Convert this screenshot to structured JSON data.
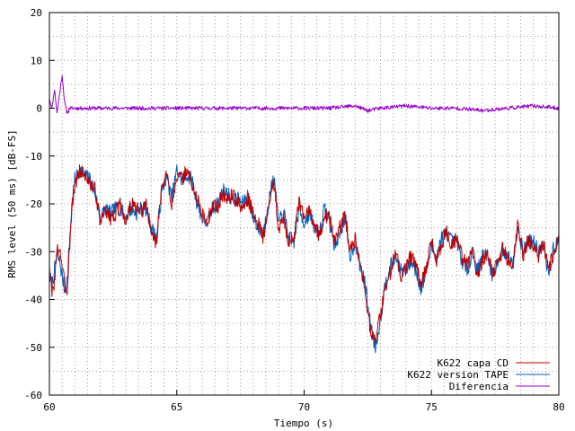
{
  "chart_data": {
    "type": "line",
    "xlabel": "Tiempo (s)",
    "ylabel": "RMS level (50 ms) [dB-FS]",
    "xlim": [
      60,
      80
    ],
    "ylim": [
      -60,
      20
    ],
    "x_ticks": [
      60,
      65,
      70,
      75,
      80
    ],
    "y_ticks": [
      20,
      10,
      0,
      -10,
      -20,
      -30,
      -40,
      -50,
      -60
    ],
    "x_minor_grid_step": 0.5,
    "y_grid_step": 5,
    "grid": true,
    "legend_position": "bottom-right",
    "colors": {
      "cd": "#c00000",
      "tape": "#0060c0",
      "diff": "#9900cc"
    },
    "series": [
      {
        "name": "K622 capa CD",
        "key": "cd",
        "x": [
          60.0,
          60.1,
          60.2,
          60.3,
          60.4,
          60.5,
          60.6,
          60.7,
          60.8,
          60.9,
          61.0,
          61.2,
          61.4,
          61.6,
          61.8,
          62.0,
          62.2,
          62.4,
          62.6,
          62.8,
          63.0,
          63.2,
          63.4,
          63.6,
          63.8,
          64.0,
          64.2,
          64.4,
          64.6,
          64.8,
          65.0,
          65.2,
          65.4,
          65.6,
          65.8,
          66.0,
          66.2,
          66.4,
          66.6,
          66.8,
          67.0,
          67.2,
          67.4,
          67.6,
          67.8,
          68.0,
          68.2,
          68.4,
          68.6,
          68.8,
          69.0,
          69.2,
          69.4,
          69.6,
          69.8,
          70.0,
          70.2,
          70.4,
          70.6,
          70.8,
          71.0,
          71.2,
          71.4,
          71.6,
          71.8,
          72.0,
          72.2,
          72.4,
          72.6,
          72.8,
          73.0,
          73.2,
          73.4,
          73.6,
          73.8,
          74.0,
          74.2,
          74.4,
          74.6,
          74.8,
          75.0,
          75.2,
          75.4,
          75.6,
          75.8,
          76.0,
          76.2,
          76.4,
          76.6,
          76.8,
          77.0,
          77.2,
          77.4,
          77.6,
          77.8,
          78.0,
          78.2,
          78.4,
          78.6,
          78.8,
          79.0,
          79.2,
          79.4,
          79.6,
          79.8,
          80.0
        ],
        "values": [
          -33,
          -39,
          -36,
          -30,
          -29,
          -33,
          -37,
          -38,
          -28,
          -20,
          -16,
          -13,
          -14,
          -16,
          -17,
          -24,
          -21,
          -23,
          -22,
          -20,
          -24,
          -20,
          -21,
          -22,
          -20,
          -26,
          -28,
          -17,
          -14,
          -20,
          -14,
          -15,
          -13,
          -16,
          -19,
          -22,
          -24,
          -20,
          -21,
          -18,
          -19,
          -18,
          -20,
          -21,
          -19,
          -22,
          -24,
          -27,
          -21,
          -15,
          -25,
          -23,
          -28,
          -27,
          -20,
          -23,
          -21,
          -24,
          -27,
          -22,
          -23,
          -28,
          -25,
          -22,
          -30,
          -27,
          -32,
          -38,
          -46,
          -49,
          -43,
          -37,
          -34,
          -30,
          -35,
          -33,
          -31,
          -33,
          -37,
          -33,
          -28,
          -32,
          -28,
          -26,
          -29,
          -27,
          -31,
          -33,
          -29,
          -35,
          -32,
          -30,
          -34,
          -33,
          -29,
          -32,
          -33,
          -24,
          -31,
          -27,
          -29,
          -31,
          -28,
          -34,
          -30,
          -27
        ],
        "jitter_seed": 3
      },
      {
        "name": "K622 version TAPE",
        "key": "tape",
        "x": [
          60.0,
          60.1,
          60.2,
          60.3,
          60.4,
          60.5,
          60.6,
          60.7,
          60.8,
          60.9,
          61.0,
          61.2,
          61.4,
          61.6,
          61.8,
          62.0,
          62.2,
          62.4,
          62.6,
          62.8,
          63.0,
          63.2,
          63.4,
          63.6,
          63.8,
          64.0,
          64.2,
          64.4,
          64.6,
          64.8,
          65.0,
          65.2,
          65.4,
          65.6,
          65.8,
          66.0,
          66.2,
          66.4,
          66.6,
          66.8,
          67.0,
          67.2,
          67.4,
          67.6,
          67.8,
          68.0,
          68.2,
          68.4,
          68.6,
          68.8,
          69.0,
          69.2,
          69.4,
          69.6,
          69.8,
          70.0,
          70.2,
          70.4,
          70.6,
          70.8,
          71.0,
          71.2,
          71.4,
          71.6,
          71.8,
          72.0,
          72.2,
          72.4,
          72.6,
          72.8,
          73.0,
          73.2,
          73.4,
          73.6,
          73.8,
          74.0,
          74.2,
          74.4,
          74.6,
          74.8,
          75.0,
          75.2,
          75.4,
          75.6,
          75.8,
          76.0,
          76.2,
          76.4,
          76.6,
          76.8,
          77.0,
          77.2,
          77.4,
          77.6,
          77.8,
          78.0,
          78.2,
          78.4,
          78.6,
          78.8,
          79.0,
          79.2,
          79.4,
          79.6,
          79.8,
          80.0
        ],
        "values": [
          -35,
          -37,
          -34,
          -31,
          -32,
          -35,
          -38,
          -36,
          -27,
          -19,
          -15,
          -13,
          -14,
          -15,
          -18,
          -23,
          -21,
          -22,
          -21,
          -21,
          -23,
          -21,
          -22,
          -21,
          -21,
          -25,
          -27,
          -18,
          -14,
          -19,
          -13,
          -15,
          -14,
          -15,
          -20,
          -23,
          -24,
          -21,
          -20,
          -17,
          -18,
          -19,
          -19,
          -20,
          -18,
          -23,
          -25,
          -26,
          -20,
          -14,
          -24,
          -22,
          -27,
          -28,
          -21,
          -24,
          -22,
          -25,
          -26,
          -21,
          -24,
          -29,
          -26,
          -23,
          -31,
          -28,
          -33,
          -37,
          -45,
          -50,
          -44,
          -36,
          -33,
          -31,
          -34,
          -34,
          -32,
          -34,
          -38,
          -34,
          -29,
          -31,
          -27,
          -26,
          -28,
          -28,
          -32,
          -34,
          -30,
          -34,
          -31,
          -31,
          -35,
          -32,
          -30,
          -31,
          -32,
          -25,
          -30,
          -28,
          -28,
          -30,
          -29,
          -35,
          -29,
          -28
        ],
        "jitter_seed": 7
      },
      {
        "name": "Diferencia",
        "key": "diff",
        "x": [
          60.0,
          60.1,
          60.2,
          60.3,
          60.4,
          60.5,
          60.6,
          60.7,
          60.8,
          61.0,
          62.0,
          63.0,
          64.0,
          65.0,
          66.0,
          67.0,
          68.0,
          69.0,
          70.0,
          71.0,
          72.0,
          72.5,
          73.0,
          74.0,
          75.0,
          76.0,
          77.0,
          78.0,
          79.0,
          80.0
        ],
        "values": [
          2,
          0,
          4,
          -1,
          3,
          7,
          1,
          -1,
          0,
          0,
          0,
          0,
          0,
          0,
          0,
          0,
          0,
          0,
          0,
          0,
          0.5,
          -0.5,
          0,
          0.5,
          0,
          0,
          -0.5,
          0,
          0.5,
          0
        ],
        "jitter_seed": 11
      }
    ]
  }
}
